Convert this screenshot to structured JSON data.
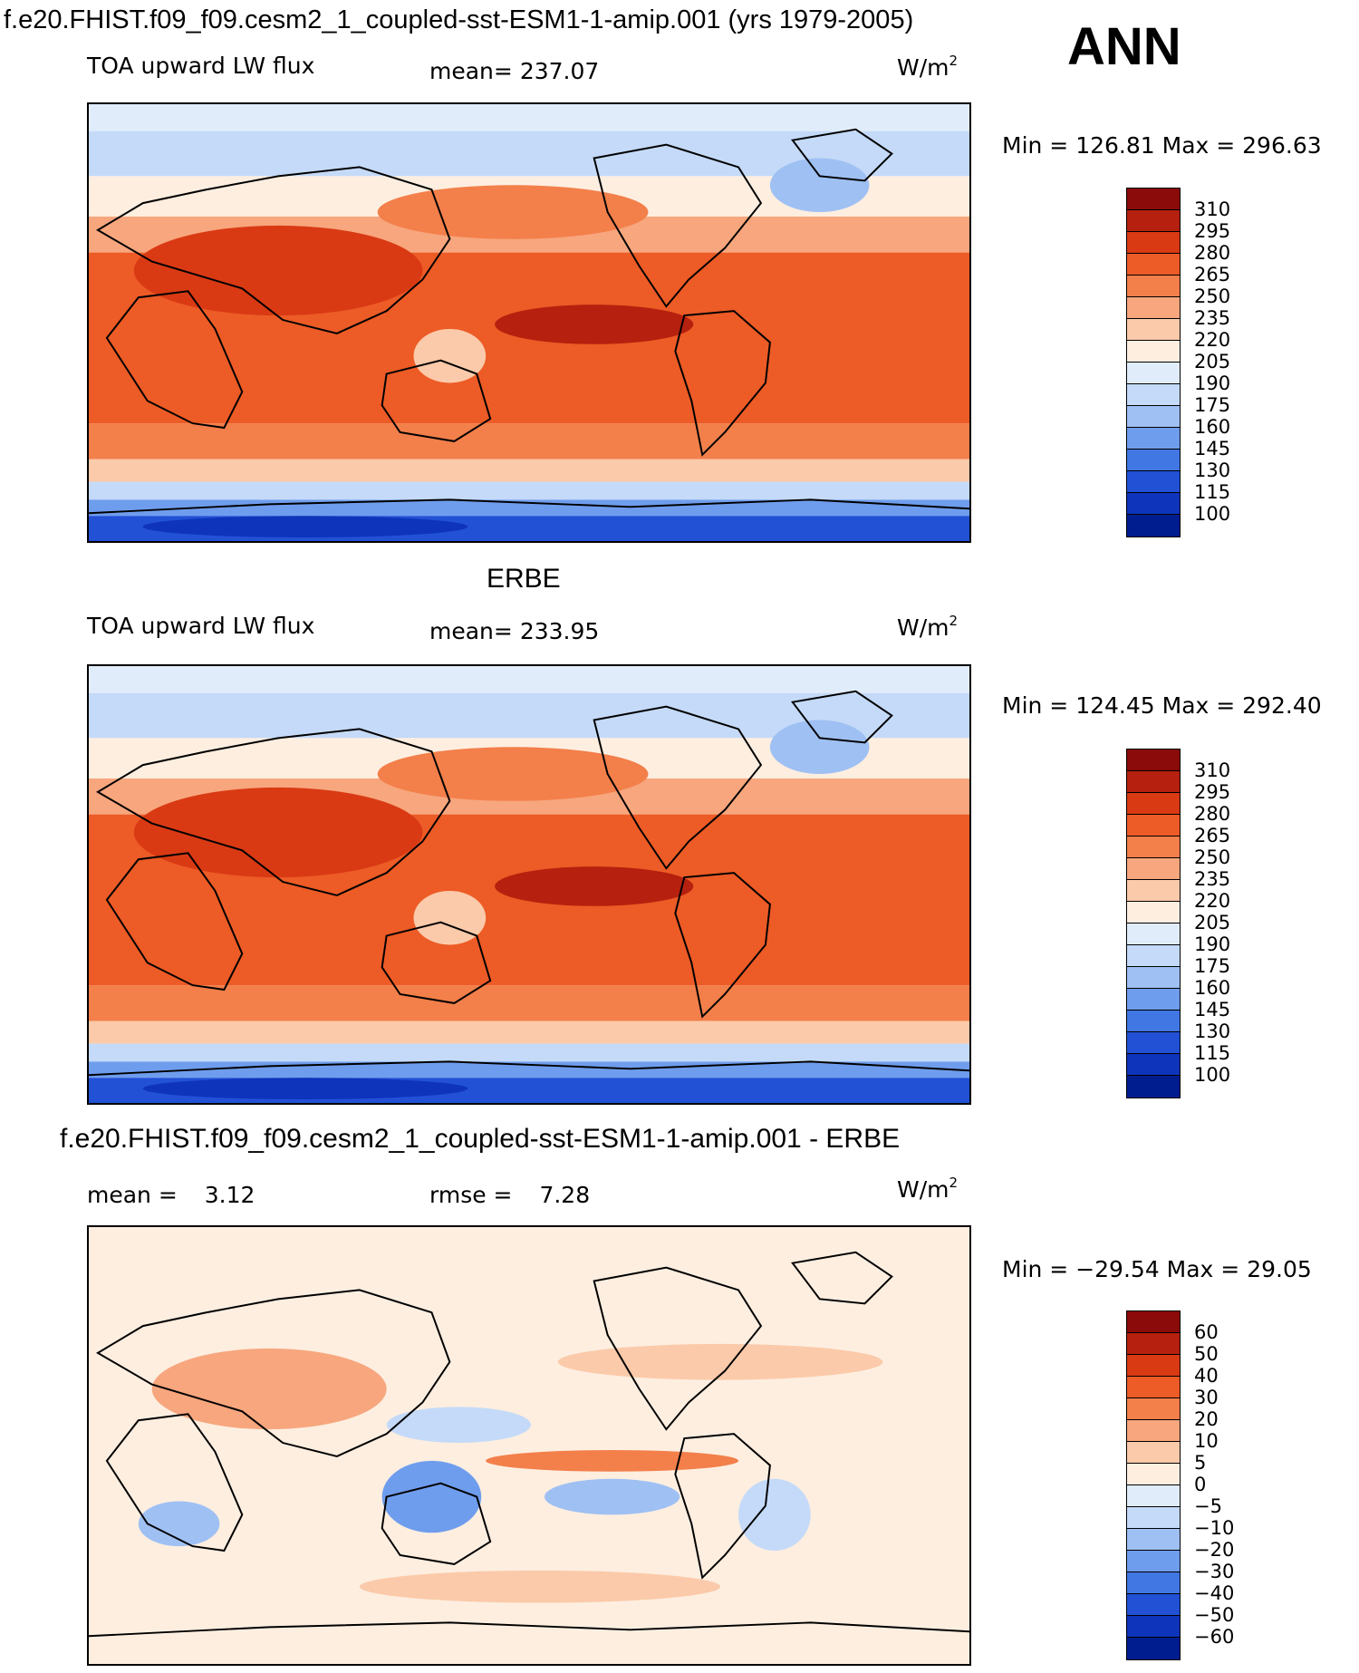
{
  "figure": {
    "title": "f.e20.FHIST.f09_f09.cesm2_1_coupled-sst-ESM1-1-amip.001 (yrs 1979-2005)",
    "season": "ANN"
  },
  "panels": [
    {
      "id": "model",
      "title": "",
      "variable": "TOA upward LW flux",
      "stat1_label": "mean=",
      "stat1_value": "237.07",
      "stat2_label": "",
      "stat2_value": "",
      "units_base": "W/m",
      "units_sup": "2",
      "minmax": "Min  =  126.81  Max  =  296.63",
      "map_style": "abs"
    },
    {
      "id": "obs",
      "title": "ERBE",
      "variable": "TOA upward LW flux",
      "stat1_label": "mean=",
      "stat1_value": "233.95",
      "stat2_label": "",
      "stat2_value": "",
      "units_base": "W/m",
      "units_sup": "2",
      "minmax": "Min  =  124.45  Max  =  292.40",
      "map_style": "abs"
    },
    {
      "id": "diff",
      "title": "f.e20.FHIST.f09_f09.cesm2_1_coupled-sst-ESM1-1-amip.001 - ERBE",
      "variable": "",
      "stat1_label": "mean  =",
      "stat1_value": "3.12",
      "stat2_label": "rmse  =",
      "stat2_value": "7.28",
      "units_base": "W/m",
      "units_sup": "2",
      "minmax": "Min  =  −29.54  Max  =    29.05",
      "map_style": "diff"
    }
  ],
  "colorbars": {
    "abs": {
      "labels": [
        "310",
        "295",
        "280",
        "265",
        "250",
        "235",
        "220",
        "205",
        "190",
        "175",
        "160",
        "145",
        "130",
        "115",
        "100"
      ],
      "colors": [
        "#8b0a0a",
        "#b5210e",
        "#d93a14",
        "#ed5b26",
        "#f37f4a",
        "#f7a67d",
        "#fbcaaa",
        "#fdeee0",
        "#e1ecfb",
        "#c4daf8",
        "#9fc0f3",
        "#6f9ded",
        "#4177e2",
        "#2251d6",
        "#0e34bb",
        "#001d8f"
      ]
    },
    "diff": {
      "labels": [
        "60",
        "50",
        "40",
        "30",
        "20",
        "10",
        "5",
        "0",
        "−5",
        "−10",
        "−20",
        "−30",
        "−40",
        "−50",
        "−60"
      ],
      "colors": [
        "#8b0a0a",
        "#b5210e",
        "#d93a14",
        "#ed5b26",
        "#f37f4a",
        "#f7a67d",
        "#fbcaaa",
        "#fdeee0",
        "#e1ecfb",
        "#c4daf8",
        "#9fc0f3",
        "#6f9ded",
        "#4177e2",
        "#2251d6",
        "#0e34bb",
        "#001d8f"
      ]
    }
  }
}
